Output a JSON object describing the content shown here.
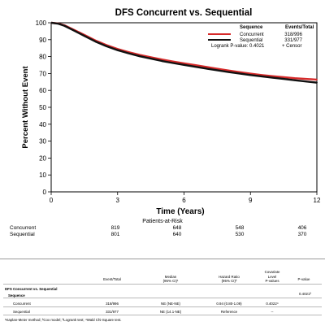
{
  "chart_data": {
    "type": "line",
    "title": "DFS Concurrent vs. Sequential",
    "xlabel": "Time (Years)",
    "ylabel": "Percent Without Event",
    "xlim": [
      0,
      12
    ],
    "ylim": [
      0,
      100
    ],
    "x_ticks": [
      "0",
      "3",
      "6",
      "9",
      "12"
    ],
    "y_ticks": [
      "0",
      "10",
      "20",
      "30",
      "40",
      "50",
      "60",
      "70",
      "80",
      "90",
      "100"
    ],
    "grid": false,
    "legend": {
      "placement": "top-right",
      "header_sequence": "Sequence",
      "header_events": "Events/Total",
      "logrank": "Logrank P-value: 0.4021",
      "censor": "+ Censor"
    },
    "series": [
      {
        "name": "Concurrent",
        "color": "#d62a2a",
        "events_total": "318/996",
        "x": [
          0,
          0.3,
          0.6,
          1,
          1.5,
          2,
          2.5,
          3,
          3.5,
          4,
          4.5,
          5,
          5.5,
          6,
          6.5,
          7,
          7.5,
          8,
          8.5,
          9,
          9.5,
          10,
          10.5,
          11,
          11.5,
          12
        ],
        "y": [
          100,
          99.6,
          98.5,
          96,
          92.8,
          89.5,
          86.8,
          84.5,
          82.6,
          81,
          79.6,
          78.3,
          77.1,
          76,
          75,
          73.9,
          72.8,
          71.8,
          70.8,
          69.9,
          69.1,
          68.4,
          67.8,
          67.2,
          66.8,
          66.4
        ]
      },
      {
        "name": "Sequential",
        "color": "#111111",
        "events_total": "331/977",
        "x": [
          0,
          0.3,
          0.6,
          1,
          1.5,
          2,
          2.5,
          3,
          3.5,
          4,
          4.5,
          5,
          5.5,
          6,
          6.5,
          7,
          7.5,
          8,
          8.5,
          9,
          9.5,
          10,
          10.5,
          11,
          11.5,
          12
        ],
        "y": [
          100,
          99.5,
          98.2,
          95.6,
          92.2,
          88.9,
          86.1,
          83.8,
          81.9,
          80.2,
          78.8,
          77.4,
          76.2,
          75.1,
          74,
          72.9,
          71.9,
          70.9,
          70,
          69.1,
          68.3,
          67.5,
          66.8,
          66,
          65.3,
          64.6
        ]
      }
    ]
  },
  "risk_table": {
    "title": "Patients-at-Risk",
    "rows": [
      {
        "name": "Concurrent",
        "values": [
          "819",
          "648",
          "548",
          "406"
        ]
      },
      {
        "name": "Sequential",
        "values": [
          "801",
          "640",
          "530",
          "370"
        ]
      }
    ]
  },
  "stats_table": {
    "headers": {
      "events": "Event/Total",
      "median_1": "Median",
      "median_2": "(95% CI)¹",
      "hr_1": "Hazard Ratio",
      "hr_2": "(95% CI)²",
      "cov_1": "Covariate",
      "cov_2": "Level",
      "cov_3": "P-values",
      "pval": "P-value"
    },
    "section_title": "DFS Concurrent vs. Sequential",
    "group_label": "Sequence",
    "group_pvalue": "0.4021³",
    "rows": [
      {
        "name": "Concurrent",
        "events": "318/996",
        "median": "NE (NE-NE)",
        "hr": "0.94 (0.80-1.09)",
        "cov": "0.4022⁴"
      },
      {
        "name": "Sequential",
        "events": "331/977",
        "median": "NE (14.1-NE)",
        "hr": "Reference",
        "cov": "--"
      }
    ],
    "footnote": "¹Kaplan-Meier method; ²Cox model; ³Logrank test; ⁴Wald Chi-Square test."
  }
}
